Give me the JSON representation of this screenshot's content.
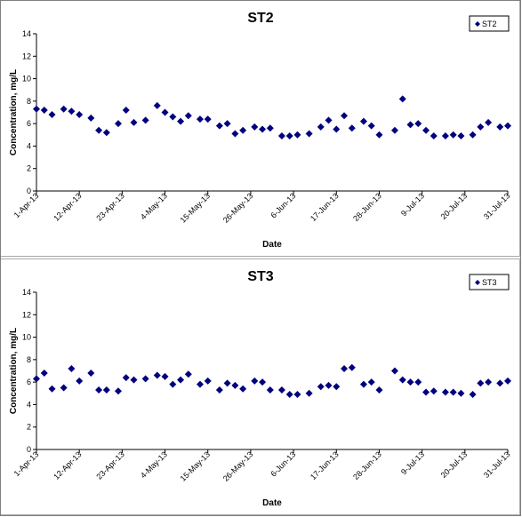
{
  "chart_data": [
    {
      "type": "scatter",
      "title": "ST2",
      "xlabel": "Date",
      "ylabel": "Concentration, mg/L",
      "ylim": [
        0,
        14
      ],
      "yticks": [
        0,
        2,
        4,
        6,
        8,
        10,
        12,
        14
      ],
      "xlim": [
        "2013-04-01",
        "2013-07-31"
      ],
      "xticks": [
        "1-Apr-13",
        "12-Apr-13",
        "23-Apr-13",
        "4-May-13",
        "15-May-13",
        "26-May-13",
        "6-Jun-13",
        "17-Jun-13",
        "28-Jun-13",
        "9-Jul-13",
        "20-Jul-13",
        "31-Jul-13"
      ],
      "grid": false,
      "legend_position": "top-right",
      "marker_color": "#00007f",
      "series": [
        {
          "name": "ST2",
          "points": [
            [
              "2013-04-01",
              7.3
            ],
            [
              "2013-04-03",
              7.2
            ],
            [
              "2013-04-05",
              6.8
            ],
            [
              "2013-04-08",
              7.3
            ],
            [
              "2013-04-10",
              7.1
            ],
            [
              "2013-04-12",
              6.8
            ],
            [
              "2013-04-15",
              6.5
            ],
            [
              "2013-04-17",
              5.4
            ],
            [
              "2013-04-19",
              5.2
            ],
            [
              "2013-04-22",
              6.0
            ],
            [
              "2013-04-24",
              7.2
            ],
            [
              "2013-04-26",
              6.1
            ],
            [
              "2013-04-29",
              6.3
            ],
            [
              "2013-05-02",
              7.6
            ],
            [
              "2013-05-04",
              7.0
            ],
            [
              "2013-05-06",
              6.6
            ],
            [
              "2013-05-08",
              6.2
            ],
            [
              "2013-05-10",
              6.7
            ],
            [
              "2013-05-13",
              6.4
            ],
            [
              "2013-05-15",
              6.4
            ],
            [
              "2013-05-18",
              5.8
            ],
            [
              "2013-05-20",
              6.0
            ],
            [
              "2013-05-22",
              5.1
            ],
            [
              "2013-05-24",
              5.4
            ],
            [
              "2013-05-27",
              5.7
            ],
            [
              "2013-05-29",
              5.5
            ],
            [
              "2013-05-31",
              5.6
            ],
            [
              "2013-06-03",
              4.9
            ],
            [
              "2013-06-05",
              4.9
            ],
            [
              "2013-06-07",
              5.0
            ],
            [
              "2013-06-10",
              5.1
            ],
            [
              "2013-06-13",
              5.7
            ],
            [
              "2013-06-15",
              6.3
            ],
            [
              "2013-06-17",
              5.5
            ],
            [
              "2013-06-19",
              6.7
            ],
            [
              "2013-06-21",
              5.6
            ],
            [
              "2013-06-24",
              6.2
            ],
            [
              "2013-06-26",
              5.8
            ],
            [
              "2013-06-28",
              5.0
            ],
            [
              "2013-07-02",
              5.4
            ],
            [
              "2013-07-04",
              8.2
            ],
            [
              "2013-07-06",
              5.9
            ],
            [
              "2013-07-08",
              6.0
            ],
            [
              "2013-07-10",
              5.4
            ],
            [
              "2013-07-12",
              4.9
            ],
            [
              "2013-07-15",
              4.9
            ],
            [
              "2013-07-17",
              5.0
            ],
            [
              "2013-07-19",
              4.9
            ],
            [
              "2013-07-22",
              5.0
            ],
            [
              "2013-07-24",
              5.7
            ],
            [
              "2013-07-26",
              6.1
            ],
            [
              "2013-07-29",
              5.7
            ],
            [
              "2013-07-31",
              5.8
            ]
          ]
        }
      ]
    },
    {
      "type": "scatter",
      "title": "ST3",
      "xlabel": "Date",
      "ylabel": "Concentration, mg/L",
      "ylim": [
        0,
        14
      ],
      "yticks": [
        0,
        2,
        4,
        6,
        8,
        10,
        12,
        14
      ],
      "xlim": [
        "2013-04-01",
        "2013-07-31"
      ],
      "xticks": [
        "1-Apr-13",
        "12-Apr-13",
        "23-Apr-13",
        "4-May-13",
        "15-May-13",
        "26-May-13",
        "6-Jun-13",
        "17-Jun-13",
        "28-Jun-13",
        "9-Jul-13",
        "20-Jul-13",
        "31-Jul-13"
      ],
      "grid": false,
      "legend_position": "top-right",
      "marker_color": "#00007f",
      "series": [
        {
          "name": "ST3",
          "points": [
            [
              "2013-04-01",
              6.3
            ],
            [
              "2013-04-03",
              6.8
            ],
            [
              "2013-04-05",
              5.4
            ],
            [
              "2013-04-08",
              5.5
            ],
            [
              "2013-04-10",
              7.2
            ],
            [
              "2013-04-12",
              6.1
            ],
            [
              "2013-04-15",
              6.8
            ],
            [
              "2013-04-17",
              5.3
            ],
            [
              "2013-04-19",
              5.3
            ],
            [
              "2013-04-22",
              5.2
            ],
            [
              "2013-04-24",
              6.4
            ],
            [
              "2013-04-26",
              6.2
            ],
            [
              "2013-04-29",
              6.3
            ],
            [
              "2013-05-02",
              6.6
            ],
            [
              "2013-05-04",
              6.5
            ],
            [
              "2013-05-06",
              5.8
            ],
            [
              "2013-05-08",
              6.2
            ],
            [
              "2013-05-10",
              6.7
            ],
            [
              "2013-05-13",
              5.8
            ],
            [
              "2013-05-15",
              6.1
            ],
            [
              "2013-05-18",
              5.3
            ],
            [
              "2013-05-20",
              5.9
            ],
            [
              "2013-05-22",
              5.7
            ],
            [
              "2013-05-24",
              5.4
            ],
            [
              "2013-05-27",
              6.1
            ],
            [
              "2013-05-29",
              6.0
            ],
            [
              "2013-05-31",
              5.3
            ],
            [
              "2013-06-03",
              5.3
            ],
            [
              "2013-06-05",
              4.9
            ],
            [
              "2013-06-07",
              4.9
            ],
            [
              "2013-06-10",
              5.0
            ],
            [
              "2013-06-13",
              5.6
            ],
            [
              "2013-06-15",
              5.7
            ],
            [
              "2013-06-17",
              5.6
            ],
            [
              "2013-06-19",
              7.2
            ],
            [
              "2013-06-21",
              7.3
            ],
            [
              "2013-06-24",
              5.8
            ],
            [
              "2013-06-26",
              6.0
            ],
            [
              "2013-06-28",
              5.3
            ],
            [
              "2013-07-02",
              7.0
            ],
            [
              "2013-07-04",
              6.2
            ],
            [
              "2013-07-06",
              6.0
            ],
            [
              "2013-07-08",
              6.0
            ],
            [
              "2013-07-10",
              5.1
            ],
            [
              "2013-07-12",
              5.2
            ],
            [
              "2013-07-15",
              5.1
            ],
            [
              "2013-07-17",
              5.1
            ],
            [
              "2013-07-19",
              5.0
            ],
            [
              "2013-07-22",
              4.9
            ],
            [
              "2013-07-24",
              5.9
            ],
            [
              "2013-07-26",
              6.0
            ],
            [
              "2013-07-29",
              5.9
            ],
            [
              "2013-07-31",
              6.1
            ]
          ]
        }
      ]
    }
  ]
}
